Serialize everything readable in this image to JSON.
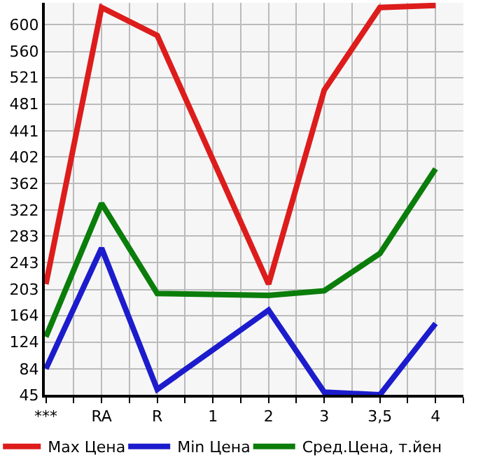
{
  "chart_data": {
    "type": "line",
    "categories": [
      "***",
      "RA",
      "R",
      "1",
      "2",
      "3",
      "3,5",
      "4"
    ],
    "series": [
      {
        "name": "Max Цена",
        "color": "#dd1c1c",
        "values": [
          211,
          626,
          584,
          null,
          211,
          502,
          626,
          629
        ]
      },
      {
        "name": "Min Цена",
        "color": "#1c1ccc",
        "values": [
          84,
          265,
          53,
          null,
          172,
          49,
          45,
          152
        ]
      },
      {
        "name": "Сред.Цена, т.йен",
        "color": "#0a7d0a",
        "values": [
          132,
          332,
          197,
          null,
          194,
          201,
          257,
          384
        ]
      }
    ],
    "ylim": [
      45,
      633
    ],
    "yticks": [
      45,
      84,
      124,
      164,
      203,
      243,
      283,
      322,
      362,
      402,
      441,
      481,
      521,
      560,
      600
    ],
    "grid": true,
    "legend": "bottom",
    "marker": "none",
    "line_style": "solid"
  }
}
